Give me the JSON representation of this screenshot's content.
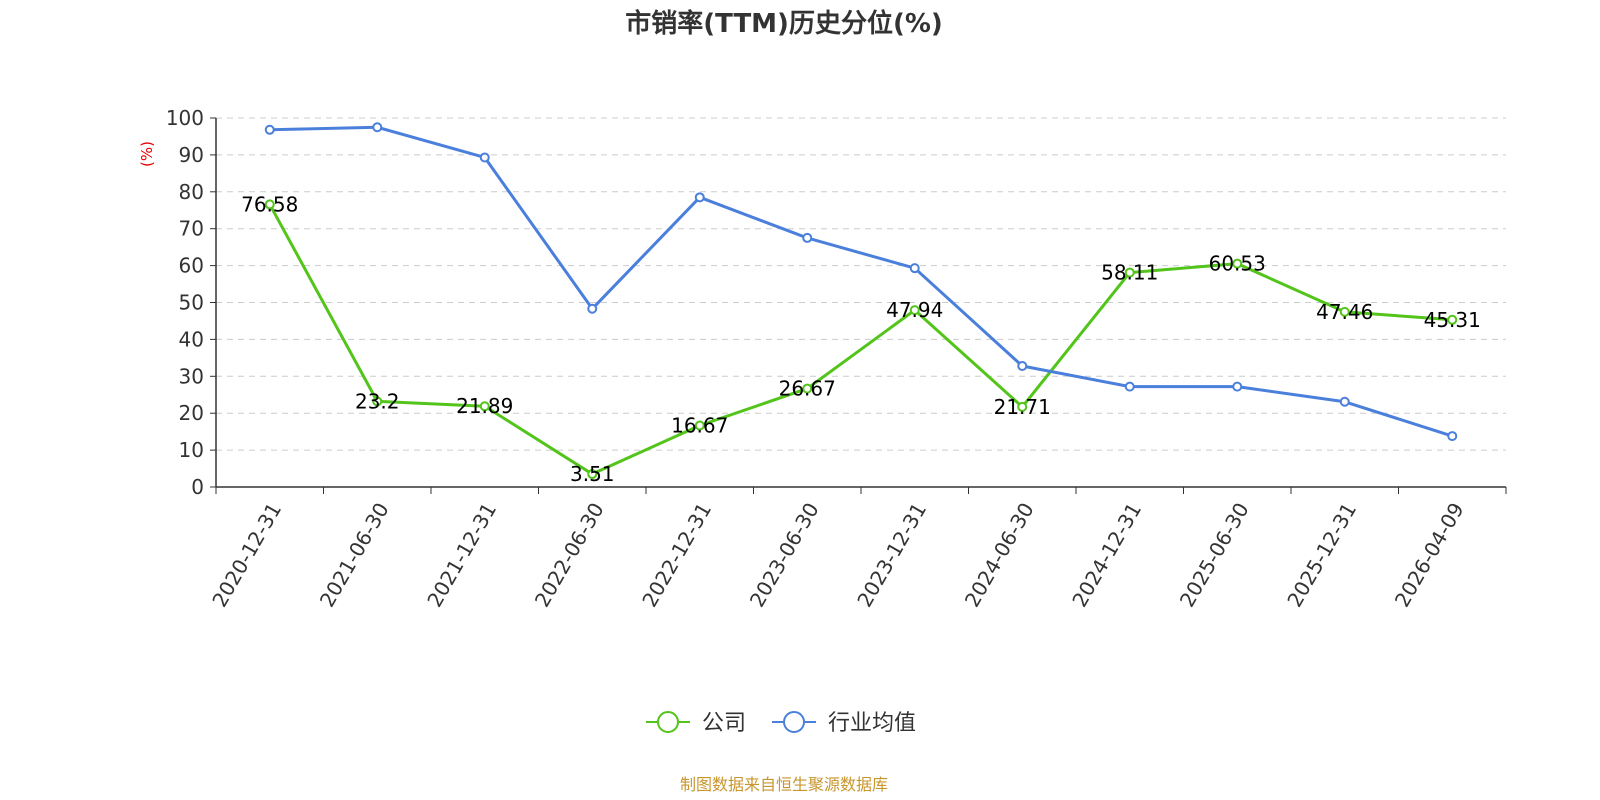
{
  "chart_data": {
    "type": "line",
    "title": "市销率(TTM)历史分位(%)",
    "ylabel": "(%)",
    "ylim": [
      0,
      100
    ],
    "yticks": [
      "0",
      "10",
      "20",
      "30",
      "40",
      "50",
      "60",
      "70",
      "80",
      "90",
      "100"
    ],
    "categories": [
      "2020-12-31",
      "2021-06-30",
      "2021-12-31",
      "2022-06-30",
      "2022-12-31",
      "2023-06-30",
      "2023-12-31",
      "2024-06-30",
      "2024-12-31",
      "2025-06-30",
      "2025-12-31",
      "2026-04-09"
    ],
    "grid": true,
    "legend_position": "bottom-center",
    "series": [
      {
        "name": "公司",
        "color": "#52c41a",
        "values": [
          76.58,
          23.2,
          21.89,
          3.51,
          16.67,
          26.67,
          47.94,
          21.71,
          58.11,
          60.53,
          47.46,
          45.31
        ],
        "labels": [
          "76.58",
          "23.2",
          "21.89",
          "3.51",
          "16.67",
          "26.67",
          "47.94",
          "21.71",
          "58.11",
          "60.53",
          "47.46",
          "45.31"
        ]
      },
      {
        "name": "行业均值",
        "color": "#4a7fdc",
        "values": [
          96.8,
          97.5,
          89.3,
          48.3,
          78.5,
          67.5,
          59.3,
          32.8,
          27.2,
          27.2,
          23.1,
          13.8
        ]
      }
    ]
  },
  "source_text": "制图数据来自恒生聚源数据库",
  "colors": {
    "title": "#333333",
    "ylabel": "#e60000",
    "source": "#c8962e",
    "grid": "#cccccc",
    "axis": "#333333"
  }
}
